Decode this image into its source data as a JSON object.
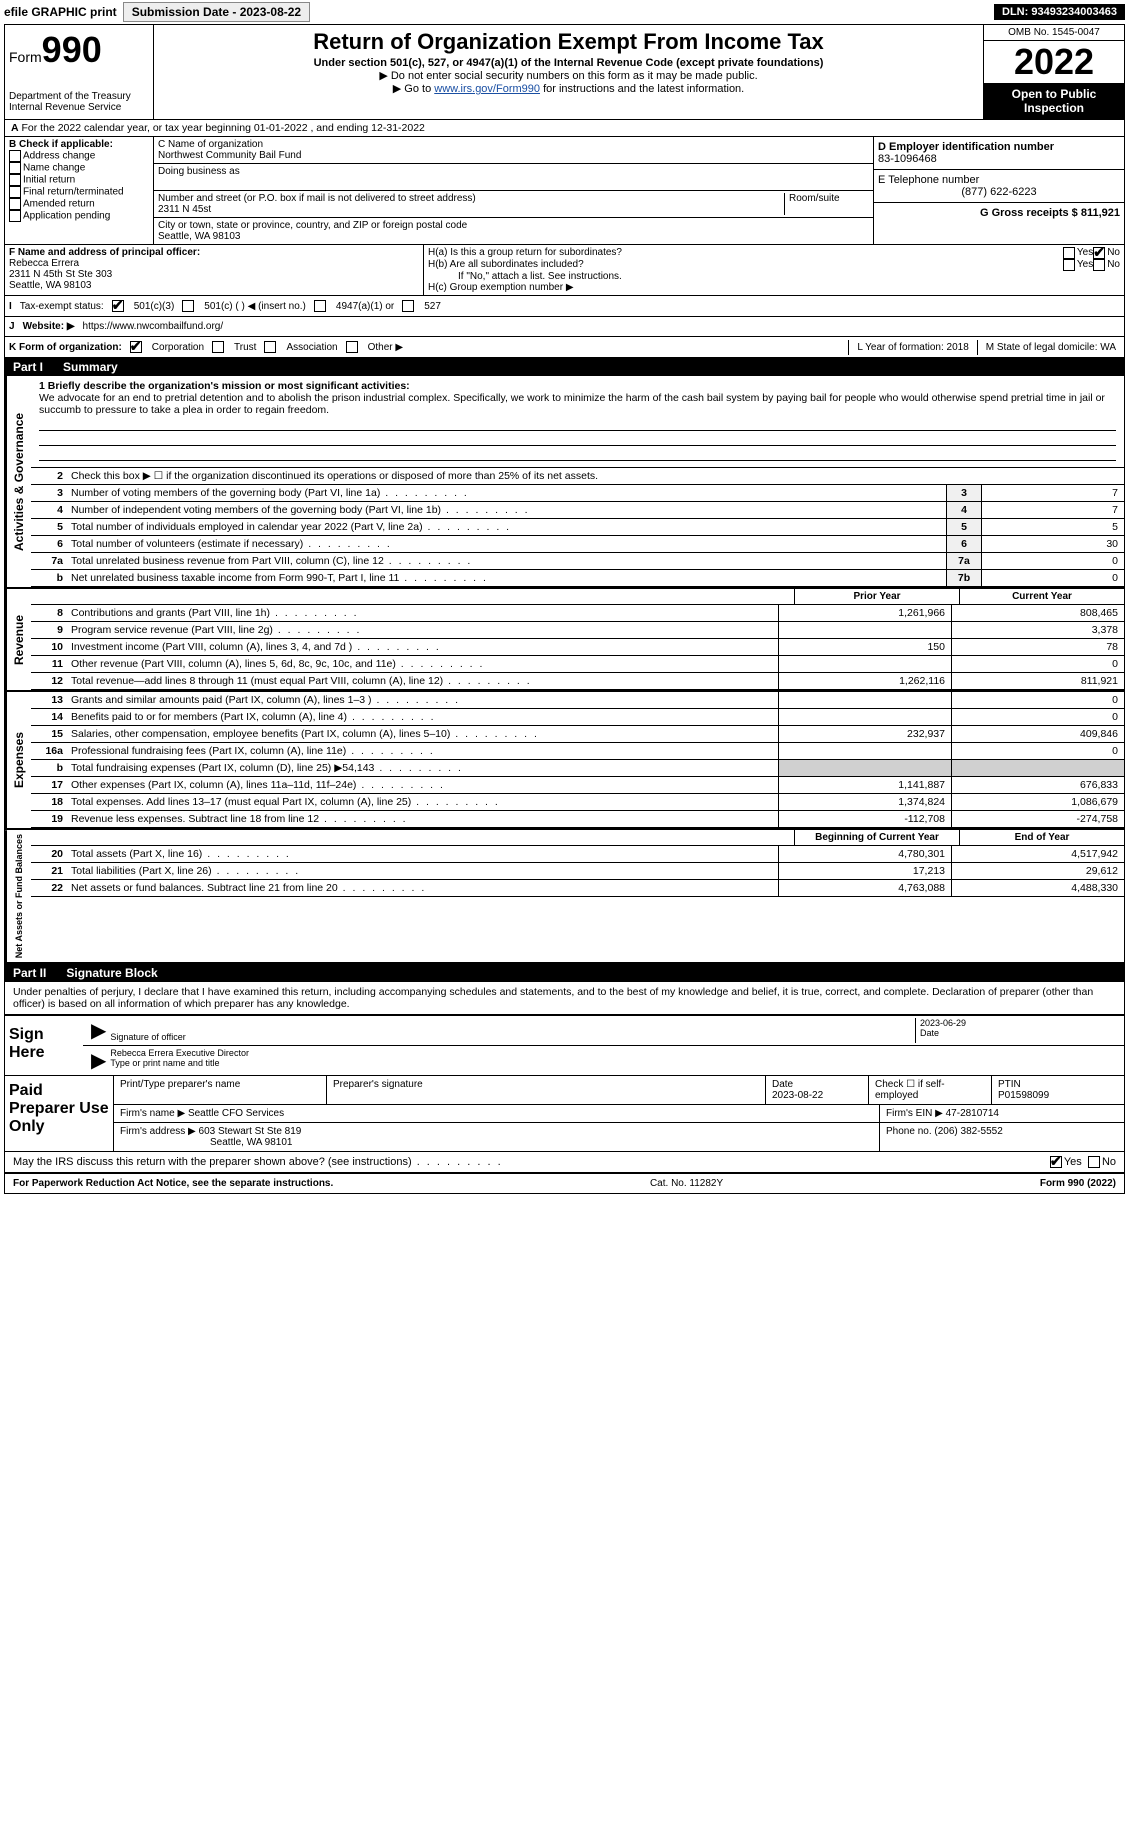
{
  "top": {
    "efile_label": "efile GRAPHIC print",
    "submission_btn": "Submission Date - 2023-08-22",
    "dln": "DLN: 93493234003463"
  },
  "header": {
    "form_prefix": "Form",
    "form_no": "990",
    "dept1": "Department of the Treasury",
    "dept2": "Internal Revenue Service",
    "title": "Return of Organization Exempt From Income Tax",
    "subtitle": "Under section 501(c), 527, or 4947(a)(1) of the Internal Revenue Code (except private foundations)",
    "note1": "▶ Do not enter social security numbers on this form as it may be made public.",
    "note2_pre": "▶ Go to ",
    "note2_link": "www.irs.gov/Form990",
    "note2_post": " for instructions and the latest information.",
    "omb": "OMB No. 1545-0047",
    "year": "2022",
    "open": "Open to Public Inspection"
  },
  "period": {
    "line": "For the 2022 calendar year, or tax year beginning 01-01-2022    , and ending 12-31-2022"
  },
  "checkB": {
    "label": "B Check if applicable:",
    "items": [
      "Address change",
      "Name change",
      "Initial return",
      "Final return/terminated",
      "Amended return",
      "Application pending"
    ]
  },
  "blockC": {
    "label_name": "C Name of organization",
    "org_name": "Northwest Community Bail Fund",
    "dba_label": "Doing business as",
    "addr_label": "Number and street (or P.O. box if mail is not delivered to street address)",
    "room_label": "Room/suite",
    "addr": "2311 N 45st",
    "city_label": "City or town, state or province, country, and ZIP or foreign postal code",
    "city": "Seattle, WA  98103"
  },
  "blockD": {
    "label": "D Employer identification number",
    "ein": "83-1096468",
    "tel_label": "E Telephone number",
    "tel": "(877) 622-6223",
    "gross_label": "G Gross receipts $ 811,921"
  },
  "blockF": {
    "label": "F Name and address of principal officer:",
    "name": "Rebecca Errera",
    "addr1": "2311 N 45th St Ste 303",
    "addr2": "Seattle, WA  98103"
  },
  "blockH": {
    "ha": "H(a)  Is this a group return for subordinates?",
    "hb": "H(b)  Are all subordinates included?",
    "hb_note": "If \"No,\" attach a list. See instructions.",
    "hc": "H(c)  Group exemption number ▶",
    "yes": "Yes",
    "no": "No"
  },
  "status": {
    "label": "Tax-exempt status:",
    "opt1": "501(c)(3)",
    "opt2": "501(c) (   ) ◀ (insert no.)",
    "opt3": "4947(a)(1) or",
    "opt4": "527"
  },
  "website": {
    "label_j": "J",
    "label": "Website: ▶",
    "url": "https://www.nwcombailfund.org/"
  },
  "korg": {
    "label": "K Form of organization:",
    "opts": [
      "Corporation",
      "Trust",
      "Association",
      "Other ▶"
    ],
    "l_label": "L Year of formation: 2018",
    "m_label": "M State of legal domicile: WA"
  },
  "part1": {
    "header_num": "Part I",
    "header_title": "Summary",
    "mission_label": "1  Briefly describe the organization's mission or most significant activities:",
    "mission": "We advocate for an end to pretrial detention and to abolish the prison industrial complex. Specifically, we work to minimize the harm of the cash bail system by paying bail for people who would otherwise spend pretrial time in jail or succumb to pressure to take a plea in order to regain freedom.",
    "line2": "Check this box ▶ ☐ if the organization discontinued its operations or disposed of more than 25% of its net assets.",
    "sections": {
      "gov": "Activities & Governance",
      "rev": "Revenue",
      "exp": "Expenses",
      "net": "Net Assets or Fund Balances"
    },
    "gov_lines": [
      {
        "n": "3",
        "t": "Number of voting members of the governing body (Part VI, line 1a)",
        "box": "3",
        "v": "7"
      },
      {
        "n": "4",
        "t": "Number of independent voting members of the governing body (Part VI, line 1b)",
        "box": "4",
        "v": "7"
      },
      {
        "n": "5",
        "t": "Total number of individuals employed in calendar year 2022 (Part V, line 2a)",
        "box": "5",
        "v": "5"
      },
      {
        "n": "6",
        "t": "Total number of volunteers (estimate if necessary)",
        "box": "6",
        "v": "30"
      },
      {
        "n": "7a",
        "t": "Total unrelated business revenue from Part VIII, column (C), line 12",
        "box": "7a",
        "v": "0"
      },
      {
        "n": "b",
        "t": "Net unrelated business taxable income from Form 990-T, Part I, line 11",
        "box": "7b",
        "v": "0"
      }
    ],
    "col_headers": {
      "prior": "Prior Year",
      "curr": "Current Year"
    },
    "rev_lines": [
      {
        "n": "8",
        "t": "Contributions and grants (Part VIII, line 1h)",
        "p": "1,261,966",
        "c": "808,465"
      },
      {
        "n": "9",
        "t": "Program service revenue (Part VIII, line 2g)",
        "p": "",
        "c": "3,378"
      },
      {
        "n": "10",
        "t": "Investment income (Part VIII, column (A), lines 3, 4, and 7d )",
        "p": "150",
        "c": "78"
      },
      {
        "n": "11",
        "t": "Other revenue (Part VIII, column (A), lines 5, 6d, 8c, 9c, 10c, and 11e)",
        "p": "",
        "c": "0"
      },
      {
        "n": "12",
        "t": "Total revenue—add lines 8 through 11 (must equal Part VIII, column (A), line 12)",
        "p": "1,262,116",
        "c": "811,921"
      }
    ],
    "exp_lines": [
      {
        "n": "13",
        "t": "Grants and similar amounts paid (Part IX, column (A), lines 1–3 )",
        "p": "",
        "c": "0"
      },
      {
        "n": "14",
        "t": "Benefits paid to or for members (Part IX, column (A), line 4)",
        "p": "",
        "c": "0"
      },
      {
        "n": "15",
        "t": "Salaries, other compensation, employee benefits (Part IX, column (A), lines 5–10)",
        "p": "232,937",
        "c": "409,846"
      },
      {
        "n": "16a",
        "t": "Professional fundraising fees (Part IX, column (A), line 11e)",
        "p": "",
        "c": "0"
      },
      {
        "n": "b",
        "t": "Total fundraising expenses (Part IX, column (D), line 25) ▶54,143",
        "p": "grey",
        "c": "grey"
      },
      {
        "n": "17",
        "t": "Other expenses (Part IX, column (A), lines 11a–11d, 11f–24e)",
        "p": "1,141,887",
        "c": "676,833"
      },
      {
        "n": "18",
        "t": "Total expenses. Add lines 13–17 (must equal Part IX, column (A), line 25)",
        "p": "1,374,824",
        "c": "1,086,679"
      },
      {
        "n": "19",
        "t": "Revenue less expenses. Subtract line 18 from line 12",
        "p": "-112,708",
        "c": "-274,758"
      }
    ],
    "net_headers": {
      "prior": "Beginning of Current Year",
      "curr": "End of Year"
    },
    "net_lines": [
      {
        "n": "20",
        "t": "Total assets (Part X, line 16)",
        "p": "4,780,301",
        "c": "4,517,942"
      },
      {
        "n": "21",
        "t": "Total liabilities (Part X, line 26)",
        "p": "17,213",
        "c": "29,612"
      },
      {
        "n": "22",
        "t": "Net assets or fund balances. Subtract line 21 from line 20",
        "p": "4,763,088",
        "c": "4,488,330"
      }
    ]
  },
  "part2": {
    "header_num": "Part II",
    "header_title": "Signature Block",
    "penalty": "Under penalties of perjury, I declare that I have examined this return, including accompanying schedules and statements, and to the best of my knowledge and belief, it is true, correct, and complete. Declaration of preparer (other than officer) is based on all information of which preparer has any knowledge.",
    "sign_here": "Sign Here",
    "sig_officer": "Signature of officer",
    "sig_date": "2023-06-29",
    "date_lbl": "Date",
    "name_title": "Rebecca Errera  Executive Director",
    "type_name": "Type or print name and title",
    "paid_label": "Paid Preparer Use Only",
    "h_print": "Print/Type preparer's name",
    "h_sig": "Preparer's signature",
    "h_date": "Date",
    "h_date_v": "2023-08-22",
    "h_check": "Check ☐ if self-employed",
    "h_ptin": "PTIN",
    "ptin_v": "P01598099",
    "firm_name_l": "Firm's name    ▶",
    "firm_name": "Seattle CFO Services",
    "firm_ein_l": "Firm's EIN ▶",
    "firm_ein": "47-2810714",
    "firm_addr_l": "Firm's address ▶",
    "firm_addr": "603 Stewart St Ste 819",
    "firm_city": "Seattle, WA  98101",
    "firm_phone_l": "Phone no.",
    "firm_phone": "(206) 382-5552",
    "irs_q": "May the IRS discuss this return with the preparer shown above? (see instructions)",
    "irs_yes": "Yes",
    "irs_no": "No"
  },
  "footer": {
    "left": "For Paperwork Reduction Act Notice, see the separate instructions.",
    "mid": "Cat. No. 11282Y",
    "right": "Form 990 (2022)"
  }
}
